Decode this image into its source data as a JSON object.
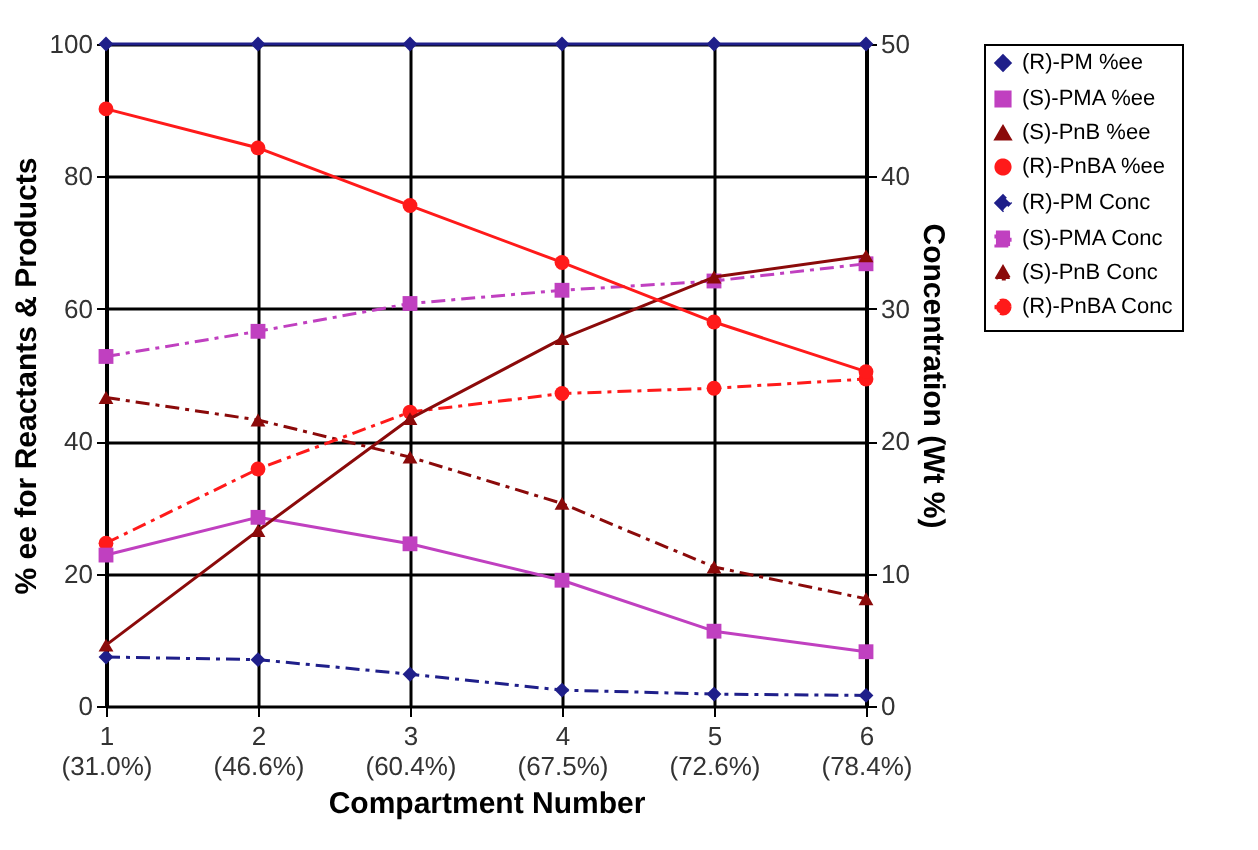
{
  "chart_data": {
    "type": "line",
    "xlabel": "Compartment Number",
    "ylabel": "% ee for Reactants & Products",
    "y2label": "Concentration (Wt %)",
    "categories": [
      "1\n(31.0%)",
      "2\n(46.6%)",
      "3\n(60.4%)",
      "4\n(67.5%)",
      "5\n(72.6%)",
      "6\n(78.4%)"
    ],
    "ylim": [
      0,
      100
    ],
    "yticks": [
      0,
      20,
      40,
      60,
      80,
      100
    ],
    "y2lim": [
      0,
      50
    ],
    "y2ticks": [
      0,
      10,
      20,
      30,
      40,
      50
    ],
    "grid": true,
    "legend": "right",
    "series": [
      {
        "name": "(R)-PM %ee",
        "color": "#1f1f8a",
        "marker": "diamond",
        "line_style": "solid",
        "values": [
          100,
          100,
          100,
          100,
          100,
          100
        ]
      },
      {
        "name": "(S)-PMA %ee",
        "color": "#c040c0",
        "marker": "square",
        "line_style": "solid",
        "values": [
          22.8,
          28.5,
          24.5,
          19,
          11.3,
          8.2
        ]
      },
      {
        "name": "(S)-PnB %ee",
        "color": "#8b0a0a",
        "marker": "triangle",
        "line_style": "solid",
        "values": [
          9.2,
          26.5,
          43.4,
          55.5,
          64.8,
          68
        ]
      },
      {
        "name": "(R)-PnBA %ee",
        "color": "#ff1a1a",
        "marker": "circle",
        "line_style": "solid",
        "values": [
          90.2,
          84.3,
          75.6,
          67,
          58,
          50.5
        ]
      },
      {
        "name": "(R)-PM Conc",
        "color": "#1f1f8a",
        "marker": "diamond",
        "line_style": "dashed",
        "axis": "y2",
        "values": [
          3.7,
          3.5,
          2.4,
          1.2,
          0.9,
          0.8
        ]
      },
      {
        "name": "(S)-PMA Conc",
        "color": "#c040c0",
        "marker": "square",
        "line_style": "dashed",
        "axis": "y2",
        "values": [
          26.4,
          28.3,
          30.4,
          31.4,
          32.1,
          33.4
        ]
      },
      {
        "name": "(S)-PnB Conc",
        "color": "#8b0a0a",
        "marker": "triangle",
        "line_style": "dashed",
        "axis": "y2",
        "values": [
          23.3,
          21.6,
          18.8,
          15.3,
          10.5,
          8.1
        ]
      },
      {
        "name": "(R)-PnBA Conc",
        "color": "#ff1a1a",
        "marker": "circle",
        "line_style": "dashed",
        "axis": "y2",
        "values": [
          12.3,
          17.9,
          22.2,
          23.6,
          24,
          24.7
        ]
      }
    ]
  }
}
